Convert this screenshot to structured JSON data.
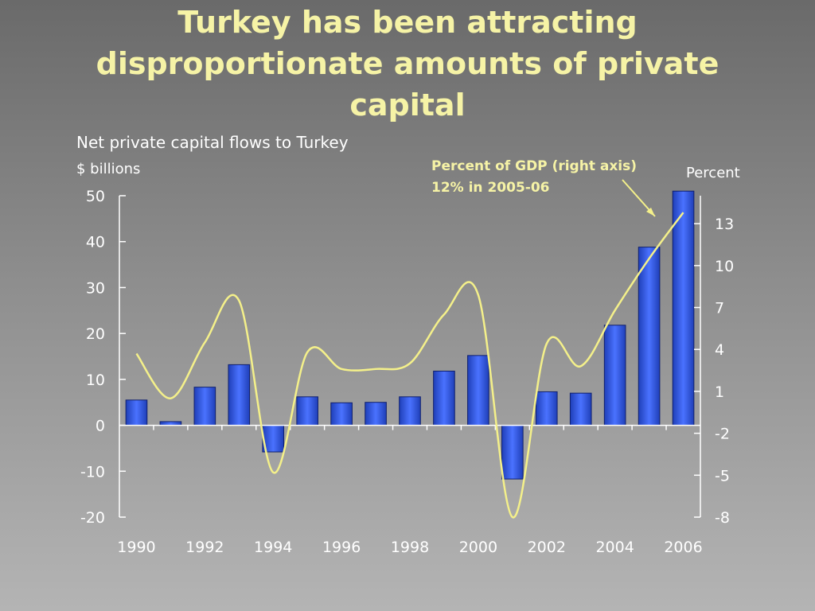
{
  "title_lines": [
    "Turkey has been attracting",
    "disproportionate amounts of private",
    "capital"
  ],
  "chart_data": {
    "type": "bar",
    "subtitle": "Net private capital flows to Turkey",
    "ylabel_left": "$ billions",
    "ylabel_right": "Percent",
    "x_tick_labels": [
      "1990",
      "1992",
      "1994",
      "1996",
      "1998",
      "2000",
      "2002",
      "2004",
      "2006"
    ],
    "y_left_ticks": [
      50,
      40,
      30,
      20,
      10,
      0,
      -10,
      -20
    ],
    "y_right_ticks": [
      13,
      10,
      7,
      4,
      1,
      -2,
      -5,
      -8
    ],
    "ylim_left": [
      -20,
      50
    ],
    "ylim_right": [
      -8,
      15
    ],
    "years": [
      1990,
      1991,
      1992,
      1993,
      1994,
      1995,
      1996,
      1997,
      1998,
      1999,
      2000,
      2001,
      2002,
      2003,
      2004,
      2005,
      2006
    ],
    "series": [
      {
        "type": "bar",
        "axis": "left",
        "color": "#2f54e0",
        "values": [
          5.5,
          0.8,
          8.3,
          13.2,
          -5.8,
          6.2,
          4.9,
          5.0,
          6.2,
          11.8,
          15.2,
          -11.7,
          7.3,
          7.0,
          21.8,
          38.8,
          51
        ]
      },
      {
        "type": "line",
        "axis": "right",
        "color": "#f4f08a",
        "values": [
          3.7,
          0.5,
          4.5,
          7.5,
          -4.8,
          3.8,
          2.6,
          2.6,
          3.0,
          6.5,
          7.9,
          -8.0,
          4.4,
          2.8,
          6.8,
          10.5,
          13.8
        ]
      }
    ],
    "annotation": {
      "lines": [
        "Percent of GDP (right axis)",
        "12% in 2005-06"
      ]
    },
    "grid": false,
    "legend": "none"
  }
}
